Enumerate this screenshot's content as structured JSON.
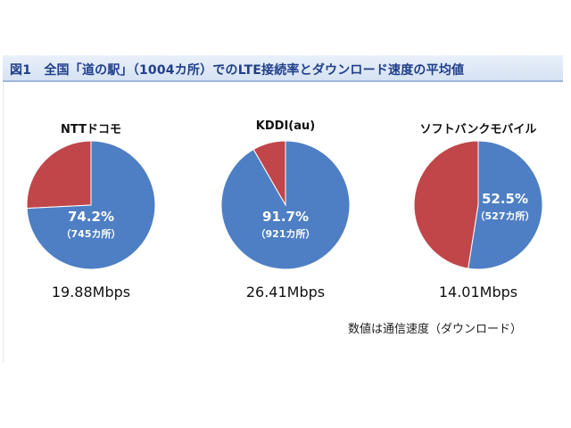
{
  "chart_data": {
    "type": "pie",
    "title": "図1　全国「道の駅」（1004カ所）でのLTE接続率とダウンロード速度の平均値",
    "note": "数値は通信速度（ダウンロード）",
    "colors": {
      "connected": "#4e7fc4",
      "not_connected": "#c0464a"
    },
    "pies": [
      {
        "name": "NTTドコモ",
        "value": 74.2,
        "pct_label": "74.2%",
        "count_label": "（745カ所）",
        "speed": "19.88Mbps"
      },
      {
        "name": "KDDI(au)",
        "value": 91.7,
        "pct_label": "91.7%",
        "count_label": "（921カ所）",
        "speed": "26.41Mbps"
      },
      {
        "name": "ソフトバンクモバイル",
        "value": 52.5,
        "pct_label": "52.5%",
        "count_label": "（527カ所）",
        "speed": "14.01Mbps"
      }
    ]
  }
}
